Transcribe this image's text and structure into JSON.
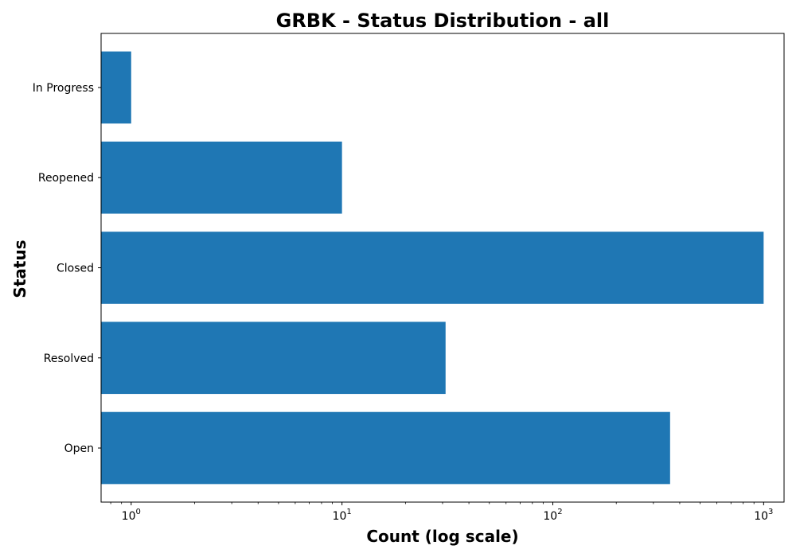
{
  "chart_data": {
    "type": "bar",
    "orientation": "horizontal",
    "title": "GRBK - Status Distribution - all",
    "xlabel": "Count (log scale)",
    "ylabel": "Status",
    "x_scale": "log",
    "xlim": [
      0.72,
      1250
    ],
    "x_ticks": [
      {
        "base": "10",
        "exp": "0",
        "value": 1
      },
      {
        "base": "10",
        "exp": "1",
        "value": 10
      },
      {
        "base": "10",
        "exp": "2",
        "value": 100
      },
      {
        "base": "10",
        "exp": "3",
        "value": 1000
      }
    ],
    "categories": [
      "Open",
      "Resolved",
      "Closed",
      "Reopened",
      "In Progress"
    ],
    "values": [
      360,
      31,
      1000,
      10,
      1
    ],
    "bar_color": "#1f77b4",
    "grid": false,
    "legend": "none"
  }
}
